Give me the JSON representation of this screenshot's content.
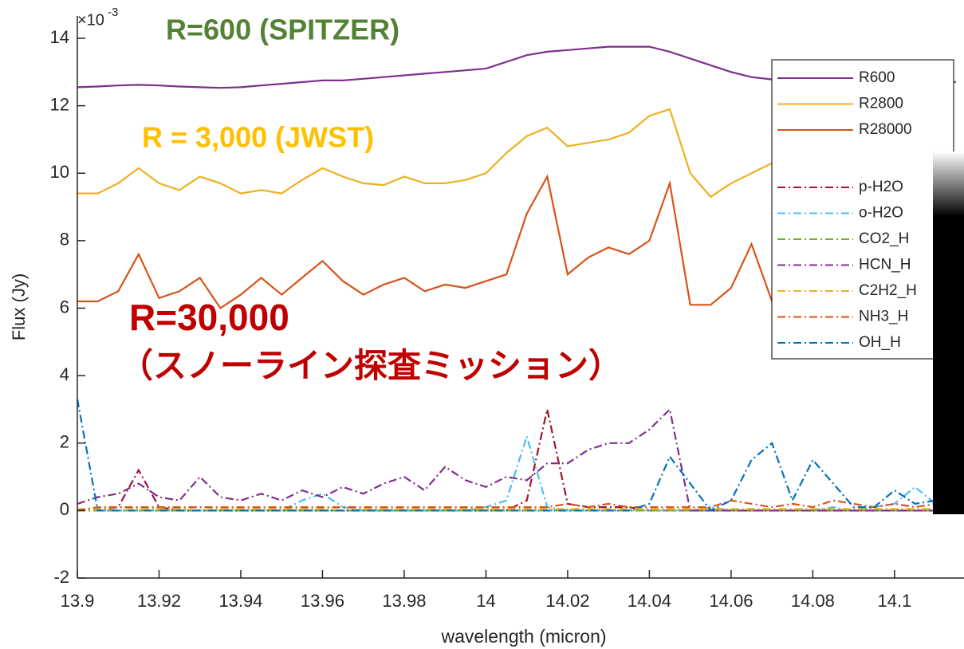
{
  "chart_data": {
    "type": "line",
    "xlabel": "wavelength (micron)",
    "ylabel": "Flux (Jy)",
    "y_scale_label": {
      "base": "×10",
      "exponent": "-3"
    },
    "annotations": [
      {
        "text": "R=600 (SPITZER)",
        "color": "#548235"
      },
      {
        "text": "R = 3,000 (JWST)",
        "color": "#ffc000"
      },
      {
        "text": "R=30,000",
        "color": "#c00000"
      },
      {
        "text": "（スノーライン探査ミッション）",
        "color": "#c00000"
      }
    ],
    "xlim": [
      13.9,
      14.117
    ],
    "ylim": [
      -2,
      14
    ],
    "xticks": [
      13.9,
      13.92,
      13.94,
      13.96,
      13.98,
      14,
      14.02,
      14.04,
      14.06,
      14.08,
      14.1
    ],
    "yticks": [
      -2,
      0,
      2,
      4,
      6,
      8,
      10,
      12,
      14
    ],
    "legend": "upper right",
    "grid": false,
    "x": [
      13.9,
      13.905,
      13.91,
      13.915,
      13.92,
      13.925,
      13.93,
      13.935,
      13.94,
      13.945,
      13.95,
      13.955,
      13.96,
      13.965,
      13.97,
      13.975,
      13.98,
      13.985,
      13.99,
      13.995,
      14.0,
      14.005,
      14.01,
      14.015,
      14.02,
      14.025,
      14.03,
      14.035,
      14.04,
      14.045,
      14.05,
      14.055,
      14.06,
      14.065,
      14.07,
      14.075,
      14.08,
      14.085,
      14.09,
      14.095,
      14.1,
      14.105,
      14.11,
      14.115
    ],
    "series": [
      {
        "name": "R600",
        "color": "#7e2f8e",
        "linestyle": "solid",
        "values": [
          12.55,
          12.57,
          12.6,
          12.62,
          12.6,
          12.57,
          12.55,
          12.53,
          12.55,
          12.6,
          12.65,
          12.7,
          12.75,
          12.75,
          12.8,
          12.85,
          12.9,
          12.95,
          13.0,
          13.05,
          13.1,
          13.3,
          13.5,
          13.6,
          13.65,
          13.7,
          13.75,
          13.75,
          13.75,
          13.6,
          13.4,
          13.2,
          13.0,
          12.85,
          12.78,
          12.72,
          12.7,
          12.7,
          12.7,
          12.7,
          12.7,
          12.7,
          12.7,
          12.7
        ]
      },
      {
        "name": "R2800",
        "color": "#edb120",
        "linestyle": "solid",
        "values": [
          9.4,
          9.4,
          9.7,
          10.15,
          9.7,
          9.5,
          9.9,
          9.7,
          9.4,
          9.5,
          9.4,
          9.8,
          10.15,
          9.9,
          9.7,
          9.65,
          9.9,
          9.7,
          9.7,
          9.8,
          10.0,
          10.6,
          11.1,
          11.35,
          10.8,
          10.9,
          11.0,
          11.2,
          11.7,
          11.9,
          10.0,
          9.3,
          9.7,
          10.0,
          10.3,
          10.2,
          10.0,
          10.0,
          10.0,
          10.0,
          10.0,
          10.0,
          10.0,
          10.0
        ]
      },
      {
        "name": "R28000",
        "color": "#d95319",
        "linestyle": "solid",
        "values": [
          6.2,
          6.2,
          6.5,
          7.6,
          6.3,
          6.5,
          6.9,
          6.0,
          6.4,
          6.9,
          6.4,
          6.9,
          7.4,
          6.8,
          6.4,
          6.7,
          6.9,
          6.5,
          6.7,
          6.6,
          6.8,
          7.0,
          8.8,
          9.9,
          7.0,
          7.5,
          7.8,
          7.6,
          8.0,
          9.7,
          6.1,
          6.1,
          6.6,
          7.9,
          6.2,
          7.8,
          7.5,
          7.0,
          7.0,
          7.0,
          7.0,
          7.0,
          7.0,
          7.0
        ]
      },
      {
        "name": "p-H2O",
        "color": "#a2142f",
        "linestyle": "dashdot",
        "values": [
          0,
          0,
          0.1,
          1.2,
          0.1,
          0,
          0,
          0,
          0,
          0,
          0,
          0,
          0,
          0,
          0,
          0,
          0,
          0,
          0,
          0,
          0,
          0,
          0.3,
          3.0,
          0.2,
          0.1,
          0.1,
          0.1,
          0,
          0,
          0,
          0,
          0,
          0,
          0,
          0,
          0,
          0,
          0,
          0,
          0,
          0,
          0,
          0
        ]
      },
      {
        "name": "o-H2O",
        "color": "#4dbeee",
        "linestyle": "dashdot",
        "values": [
          0,
          0,
          0,
          0,
          0,
          0,
          0,
          0,
          0,
          0,
          0,
          0.3,
          0.5,
          0.1,
          0,
          0,
          0,
          0,
          0,
          0,
          0.1,
          0.3,
          2.2,
          0.1,
          0,
          0,
          0,
          0,
          0,
          0,
          0,
          0.1,
          0,
          0,
          0,
          0,
          0,
          0.1,
          0,
          0.1,
          0.2,
          0.7,
          0.2,
          0.3
        ]
      },
      {
        "name": "CO2_H",
        "color": "#77ac30",
        "linestyle": "dashdot",
        "values": [
          0,
          0,
          0,
          0,
          0,
          0,
          0,
          0,
          0,
          0,
          0,
          0,
          0,
          0,
          0,
          0,
          0,
          0,
          0,
          0,
          0,
          0,
          0,
          0,
          0,
          0,
          0,
          0,
          0,
          0,
          0,
          0,
          0,
          0,
          0,
          0,
          0,
          0,
          0,
          0,
          0,
          0,
          0,
          0
        ]
      },
      {
        "name": "HCN_H",
        "color": "#7e2f8e",
        "linestyle": "dashdot",
        "values": [
          0.2,
          0.4,
          0.5,
          0.8,
          0.4,
          0.3,
          1.0,
          0.4,
          0.3,
          0.5,
          0.3,
          0.6,
          0.4,
          0.7,
          0.5,
          0.8,
          1.0,
          0.6,
          1.3,
          0.9,
          0.7,
          1.0,
          0.9,
          1.4,
          1.4,
          1.8,
          2.0,
          2.0,
          2.4,
          3.0,
          0,
          0,
          0,
          0,
          0,
          0,
          0,
          0,
          0,
          0,
          0,
          0,
          0,
          0
        ]
      },
      {
        "name": "C2H2_H",
        "color": "#edb120",
        "linestyle": "dashdot",
        "values": [
          0.05,
          0.05,
          0.1,
          0.05,
          0.05,
          0.05,
          0.1,
          0.05,
          0.05,
          0.05,
          0.05,
          0.05,
          0.05,
          0.1,
          0.05,
          0.05,
          0.05,
          0.05,
          0.05,
          0.05,
          0.05,
          0.05,
          0.05,
          0.05,
          0.05,
          0.05,
          0.05,
          0.05,
          0.05,
          0.05,
          0.05,
          0.05,
          0.05,
          0.05,
          0.05,
          0.05,
          0.05,
          0.05,
          0.05,
          0.05,
          0.05,
          0.05,
          0.05,
          0.05
        ]
      },
      {
        "name": "NH3_H",
        "color": "#d95319",
        "linestyle": "dashdot",
        "values": [
          0,
          0.1,
          0.1,
          0.1,
          0.1,
          0.1,
          0.1,
          0.1,
          0.1,
          0.1,
          0.1,
          0.1,
          0.1,
          0.1,
          0.1,
          0.1,
          0.1,
          0.1,
          0.1,
          0.1,
          0.1,
          0.1,
          0.1,
          0.1,
          0.2,
          0.1,
          0.2,
          0.1,
          0.1,
          0.1,
          0.1,
          0.1,
          0.3,
          0.2,
          0.1,
          0.2,
          0.1,
          0.3,
          0.2,
          0.1,
          0.2,
          0.1,
          0.2,
          0.1
        ]
      },
      {
        "name": "OH_H",
        "color": "#0072bd",
        "linestyle": "dashdot",
        "values": [
          3.3,
          0,
          0,
          0,
          0,
          0,
          0,
          0,
          0,
          0,
          0,
          0,
          0,
          0,
          0,
          0,
          0,
          0,
          0,
          0,
          0,
          0,
          0,
          0,
          0,
          0,
          0,
          0,
          0.2,
          1.6,
          0.8,
          0,
          0.3,
          1.5,
          2.0,
          0.3,
          1.5,
          0.8,
          0.1,
          0.1,
          0.6,
          0.2,
          0.3,
          0.5
        ]
      }
    ]
  }
}
